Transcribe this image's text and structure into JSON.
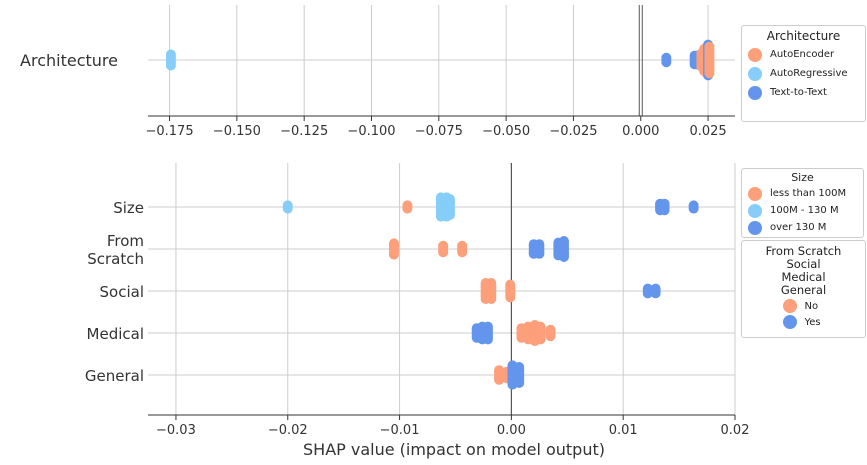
{
  "colors": {
    "orange": "#fc9f7a",
    "lightblue": "#86cdf9",
    "blue": "#6495ed",
    "grid": "#cccccc",
    "axis": "#333333",
    "zero": "#555555"
  },
  "chart_data": [
    {
      "type": "scatter",
      "title": "",
      "xlabel": "",
      "xlim": [
        -0.183,
        0.035
      ],
      "xticks": [
        -0.175,
        -0.15,
        -0.125,
        -0.1,
        -0.075,
        -0.05,
        -0.025,
        0.0,
        0.025
      ],
      "xtick_labels": [
        "−0.175",
        "−0.150",
        "−0.125",
        "−0.100",
        "−0.075",
        "−0.050",
        "−0.025",
        "0.000",
        "0.025"
      ],
      "features": [
        "Architecture"
      ],
      "legend": {
        "title": "Architecture",
        "position": "right",
        "entries": [
          {
            "label": "AutoEncoder",
            "color": "#fc9f7a"
          },
          {
            "label": "AutoRegressive",
            "color": "#86cdf9"
          },
          {
            "label": "Text-to-Text",
            "color": "#6495ed"
          }
        ]
      },
      "points": [
        {
          "feature": "Architecture",
          "x": -0.1745,
          "count": 6,
          "color": "#86cdf9"
        },
        {
          "feature": "Architecture",
          "x": 0.0095,
          "count": 3,
          "color": "#6495ed"
        },
        {
          "feature": "Architecture",
          "x": 0.02,
          "count": 5,
          "color": "#6495ed"
        },
        {
          "feature": "Architecture",
          "x": 0.021,
          "count": 5,
          "color": "#6495ed"
        },
        {
          "feature": "Architecture",
          "x": 0.0225,
          "count": 7,
          "color": "#fc9f7a"
        },
        {
          "feature": "Architecture",
          "x": 0.0235,
          "count": 11,
          "color": "#fc9f7a"
        },
        {
          "feature": "Architecture",
          "x": 0.0245,
          "count": 13,
          "color": "#fc9f7a"
        },
        {
          "feature": "Architecture",
          "x": 0.025,
          "count": 15,
          "color": "#6495ed"
        },
        {
          "feature": "Architecture",
          "x": 0.0255,
          "count": 13,
          "color": "#fc9f7a"
        }
      ]
    },
    {
      "type": "scatter",
      "title": "",
      "xlabel": "SHAP value (impact on model output)",
      "xlim": [
        -0.0325,
        0.02
      ],
      "xticks": [
        -0.03,
        -0.02,
        -0.01,
        0.0,
        0.01,
        0.02
      ],
      "xtick_labels": [
        "−0.03",
        "−0.02",
        "−0.01",
        "0.00",
        "0.01",
        "0.02"
      ],
      "features": [
        "Size",
        "From\nScratch",
        "Social",
        "Medical",
        "General"
      ],
      "legends": [
        {
          "title": "Size",
          "position": "right",
          "entries": [
            {
              "label": "less than 100M",
              "color": "#fc9f7a"
            },
            {
              "label": "100M - 130 M",
              "color": "#86cdf9"
            },
            {
              "label": "over 130 M",
              "color": "#6495ed"
            }
          ]
        },
        {
          "title": "From Scratch\nSocial\nMedical\nGeneral",
          "position": "right",
          "entries": [
            {
              "label": "No",
              "color": "#fc9f7a"
            },
            {
              "label": "Yes",
              "color": "#6495ed"
            }
          ]
        }
      ],
      "points": [
        {
          "feature": "Size",
          "x": -0.02,
          "count": 3,
          "color": "#86cdf9"
        },
        {
          "feature": "Size",
          "x": -0.0093,
          "count": 3,
          "color": "#fc9f7a"
        },
        {
          "feature": "Size",
          "x": -0.0063,
          "count": 13,
          "color": "#86cdf9"
        },
        {
          "feature": "Size",
          "x": -0.0058,
          "count": 13,
          "color": "#86cdf9"
        },
        {
          "feature": "Size",
          "x": -0.0055,
          "count": 11,
          "color": "#86cdf9"
        },
        {
          "feature": "Size",
          "x": 0.0133,
          "count": 5,
          "color": "#6495ed"
        },
        {
          "feature": "Size",
          "x": 0.0137,
          "count": 5,
          "color": "#6495ed"
        },
        {
          "feature": "Size",
          "x": 0.0163,
          "count": 3,
          "color": "#6495ed"
        },
        {
          "feature": "From\nScratch",
          "x": -0.0105,
          "count": 8,
          "color": "#fc9f7a"
        },
        {
          "feature": "From\nScratch",
          "x": -0.0061,
          "count": 5,
          "color": "#fc9f7a"
        },
        {
          "feature": "From\nScratch",
          "x": -0.0044,
          "count": 5,
          "color": "#fc9f7a"
        },
        {
          "feature": "From\nScratch",
          "x": 0.002,
          "count": 7,
          "color": "#6495ed"
        },
        {
          "feature": "From\nScratch",
          "x": 0.0025,
          "count": 7,
          "color": "#6495ed"
        },
        {
          "feature": "From\nScratch",
          "x": 0.0042,
          "count": 9,
          "color": "#6495ed"
        },
        {
          "feature": "From\nScratch",
          "x": 0.0047,
          "count": 11,
          "color": "#6495ed"
        },
        {
          "feature": "Social",
          "x": -0.0023,
          "count": 11,
          "color": "#fc9f7a"
        },
        {
          "feature": "Social",
          "x": -0.0018,
          "count": 11,
          "color": "#fc9f7a"
        },
        {
          "feature": "Social",
          "x": -0.0001,
          "count": 9,
          "color": "#fc9f7a"
        },
        {
          "feature": "Social",
          "x": 0.0122,
          "count": 4,
          "color": "#6495ed"
        },
        {
          "feature": "Social",
          "x": 0.0129,
          "count": 4,
          "color": "#6495ed"
        },
        {
          "feature": "Medical",
          "x": -0.0031,
          "count": 7,
          "color": "#6495ed"
        },
        {
          "feature": "Medical",
          "x": -0.0026,
          "count": 9,
          "color": "#6495ed"
        },
        {
          "feature": "Medical",
          "x": -0.0021,
          "count": 9,
          "color": "#6495ed"
        },
        {
          "feature": "Medical",
          "x": 0.0009,
          "count": 7,
          "color": "#fc9f7a"
        },
        {
          "feature": "Medical",
          "x": 0.0015,
          "count": 9,
          "color": "#fc9f7a"
        },
        {
          "feature": "Medical",
          "x": 0.0021,
          "count": 11,
          "color": "#fc9f7a"
        },
        {
          "feature": "Medical",
          "x": 0.0026,
          "count": 9,
          "color": "#fc9f7a"
        },
        {
          "feature": "Medical",
          "x": 0.0035,
          "count": 5,
          "color": "#fc9f7a"
        },
        {
          "feature": "General",
          "x": -0.0011,
          "count": 7,
          "color": "#fc9f7a"
        },
        {
          "feature": "General",
          "x": -0.0004,
          "count": 5,
          "color": "#fc9f7a"
        },
        {
          "feature": "General",
          "x": 0.0001,
          "count": 13,
          "color": "#6495ed"
        },
        {
          "feature": "General",
          "x": 0.0007,
          "count": 11,
          "color": "#6495ed"
        }
      ]
    }
  ]
}
